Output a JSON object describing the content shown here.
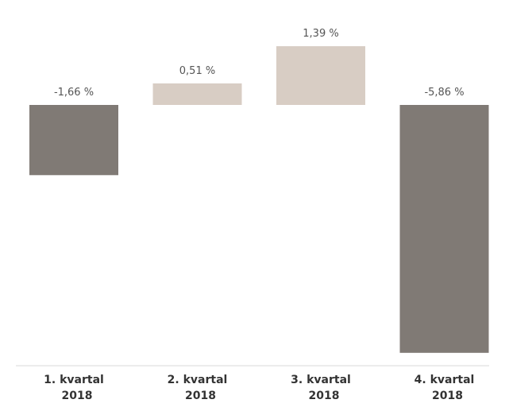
{
  "chart_data": {
    "type": "bar",
    "categories": [
      "1. kvartal 2018",
      "2. kvartal 2018",
      "3. kvartal 2018",
      "4. kvartal 2018"
    ],
    "category_lines": [
      [
        "1. kvartal",
        "2018"
      ],
      [
        "2. kvartal",
        "2018"
      ],
      [
        "3. kvartal",
        "2018"
      ],
      [
        "4. kvartal",
        "2018"
      ]
    ],
    "values": [
      -1.66,
      0.51,
      1.39,
      -5.86
    ],
    "value_labels": [
      "-1,66  %",
      "0,51  %",
      "1,39  %",
      "-5,86  %"
    ],
    "title": "",
    "xlabel": "",
    "ylabel": "",
    "grid": false,
    "legend": "none",
    "colors": {
      "negative": "#807a75",
      "positive": "#d8cdc4",
      "axis": "#d9d9d9"
    }
  }
}
